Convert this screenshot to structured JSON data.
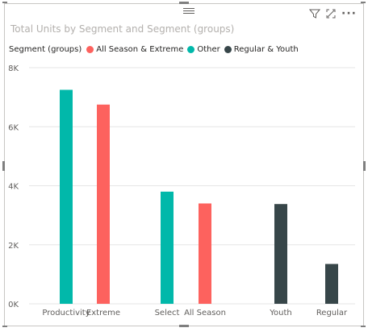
{
  "header": {
    "icons": [
      "filter-icon",
      "focus-mode-icon",
      "more-options-icon"
    ],
    "more_glyph": "···"
  },
  "chart_data": {
    "type": "bar",
    "title": "Total Units by Segment and Segment (groups)",
    "legend": {
      "title": "Segment (groups)",
      "placement": "top-left",
      "entries": [
        {
          "name": "All Season & Extreme",
          "color": "#fd625e"
        },
        {
          "name": "Other",
          "color": "#01b8aa"
        },
        {
          "name": "Regular & Youth",
          "color": "#374649"
        }
      ]
    },
    "categories": [
      "Productivity",
      "Extreme",
      "Select",
      "All Season",
      "Youth",
      "Regular"
    ],
    "series": [
      {
        "name": "All Season & Extreme",
        "color": "#fd625e",
        "values": [
          null,
          6750,
          null,
          3400,
          null,
          null
        ]
      },
      {
        "name": "Other",
        "color": "#01b8aa",
        "values": [
          7250,
          null,
          3800,
          null,
          null,
          null
        ]
      },
      {
        "name": "Regular & Youth",
        "color": "#374649",
        "values": [
          null,
          null,
          null,
          null,
          3380,
          1350
        ]
      }
    ],
    "ylim": [
      0,
      8000
    ],
    "yticks": [
      "0K",
      "2K",
      "4K",
      "6K",
      "8K"
    ],
    "ytick_values": [
      0,
      2000,
      4000,
      6000,
      8000
    ],
    "grid": true,
    "xlabel": "",
    "ylabel": ""
  }
}
